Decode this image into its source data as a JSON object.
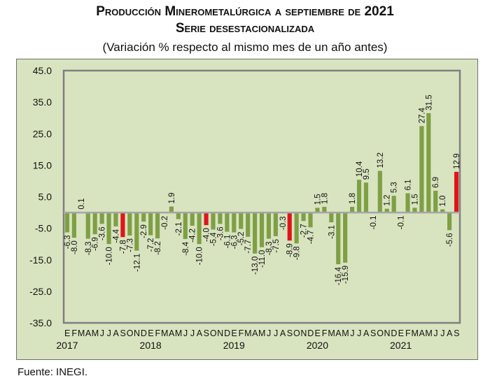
{
  "title": "Producción Minerometalúrgica a septiembre de 2021",
  "title_line2": "Serie desestacionalizada",
  "subtitle": "(Variación % respecto al mismo mes de un año antes)",
  "footer": "Fuente: INEGI.",
  "colors": {
    "background": "#d8e4bf",
    "bar": "#7f9f45",
    "highlight": "#e0151b",
    "axis": "#a6a6a6",
    "frame": "#7f7f7f"
  },
  "chart_data": {
    "type": "bar",
    "title": "Producción Minerometalúrgica a septiembre de 2021",
    "subtitle": "Serie desestacionalizada — (Variación % respecto al mismo mes de un año antes)",
    "xlabel": "",
    "ylabel": "",
    "ylim": [
      -35,
      45
    ],
    "yticks": [
      "45.0",
      "35.0",
      "25.0",
      "15.0",
      "5.0",
      "-5.0",
      "-15.0",
      "-25.0",
      "-35.0"
    ],
    "ytick_values": [
      45,
      35,
      25,
      15,
      5,
      -5,
      -15,
      -25,
      -35
    ],
    "grid": false,
    "legend": "none",
    "month_labels": [
      "E",
      "F",
      "M",
      "A",
      "M",
      "J",
      "J",
      "A",
      "S",
      "O",
      "N",
      "D"
    ],
    "years": [
      "2017",
      "2018",
      "2019",
      "2020",
      "2021"
    ],
    "categories": [
      "2017-E",
      "2017-F",
      "2017-M",
      "2017-A",
      "2017-M",
      "2017-J",
      "2017-J",
      "2017-A",
      "2017-S",
      "2017-O",
      "2017-N",
      "2017-D",
      "2018-E",
      "2018-F",
      "2018-M",
      "2018-A",
      "2018-M",
      "2018-J",
      "2018-J",
      "2018-A",
      "2018-S",
      "2018-O",
      "2018-N",
      "2018-D",
      "2019-E",
      "2019-F",
      "2019-M",
      "2019-A",
      "2019-M",
      "2019-J",
      "2019-J",
      "2019-A",
      "2019-S",
      "2019-O",
      "2019-N",
      "2019-D",
      "2020-E",
      "2020-F",
      "2020-M",
      "2020-A",
      "2020-M",
      "2020-J",
      "2020-J",
      "2020-A",
      "2020-S",
      "2020-O",
      "2020-N",
      "2020-D",
      "2021-E",
      "2021-F",
      "2021-M",
      "2021-A",
      "2021-M",
      "2021-J",
      "2021-J",
      "2021-A",
      "2021-S"
    ],
    "values": [
      -6.3,
      -8.0,
      0.1,
      -8.3,
      -6.9,
      -3.6,
      -10.0,
      -4.4,
      -7.8,
      -7.3,
      -12.1,
      -2.9,
      -7.2,
      -8.2,
      -0.2,
      1.9,
      -2.1,
      -8.4,
      -4.2,
      -10.0,
      -4.0,
      -5.4,
      -3.6,
      -6.1,
      -6.3,
      -5.2,
      -7.7,
      -13.0,
      -11.0,
      -8.3,
      -7.5,
      -0.3,
      -8.9,
      -9.8,
      -2.7,
      -4.7,
      1.5,
      1.8,
      -3.1,
      -16.4,
      -15.9,
      1.8,
      10.4,
      9.5,
      -0.1,
      13.2,
      1.2,
      5.3,
      -0.1,
      6.1,
      1.5,
      27.4,
      31.5,
      6.9,
      1.0,
      -5.6,
      12.9
    ],
    "highlighted_month": "S"
  }
}
